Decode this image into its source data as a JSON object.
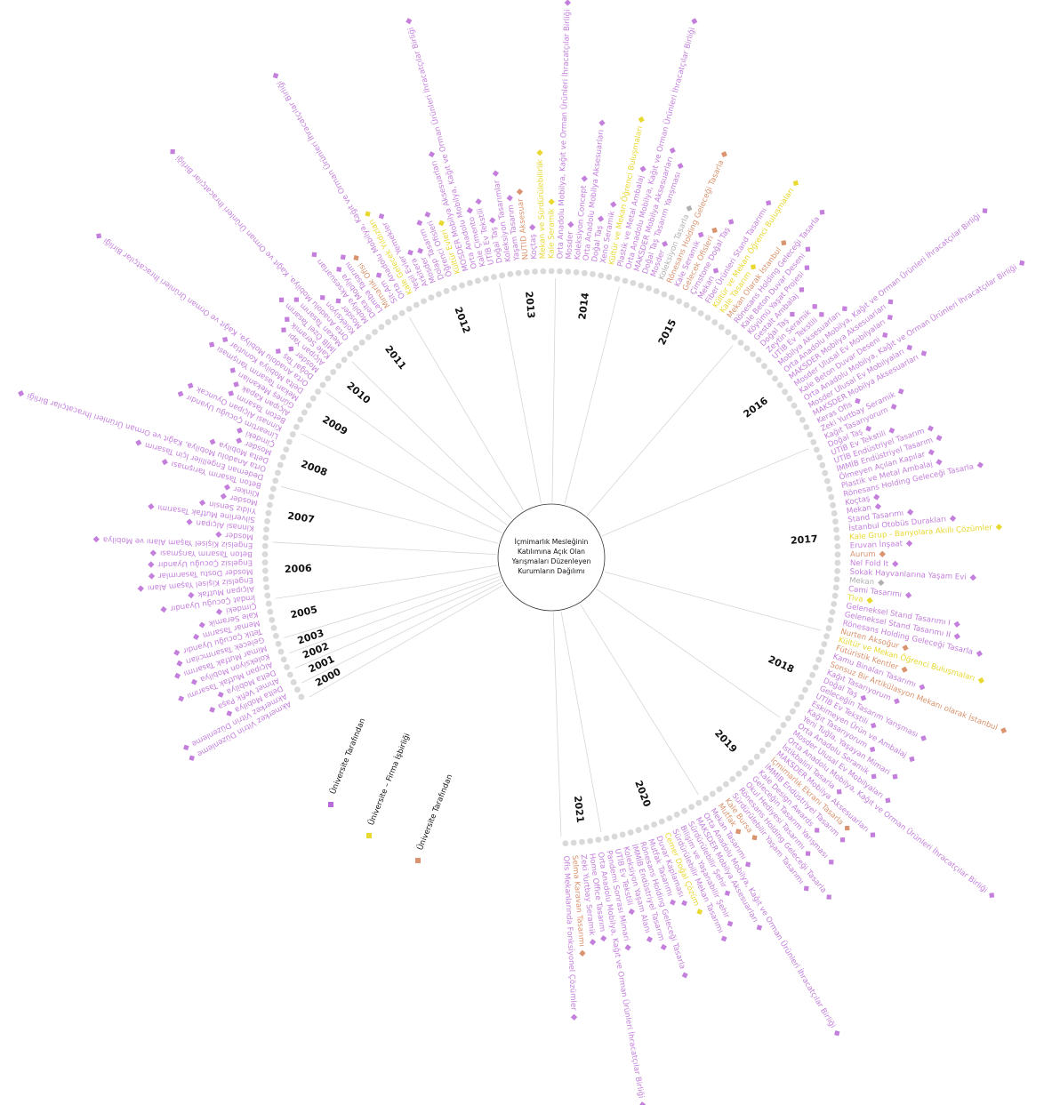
{
  "title_lines": [
    "İçmimarlık Mesleğinin",
    "Katılımına Açık Olan",
    "Yarışmaları Düzenleyen",
    "Kurumların Dağılımı"
  ],
  "legend": [
    {
      "label": "Üniversite Tarafından",
      "color": "#b86ad8"
    },
    {
      "label": "Üniversite – Firma İşbirliği",
      "color": "#e8d830"
    },
    {
      "label": "Üniversite Tarafından",
      "color": "#d9936e"
    }
  ],
  "years": [
    {
      "year": "2000",
      "entries": [
        {
          "label": "Akmerkez Vitrin Düzenleme",
          "color": "#c47fdc"
        },
        {
          "label": "Akmerkez Vitrin Düzenleme",
          "color": "#c47fdc"
        }
      ]
    },
    {
      "year": "2001",
      "entries": [
        {
          "label": "Delta Mobilya",
          "color": "#c47fdc"
        },
        {
          "label": "Ahmet Vefik Paşa",
          "color": "#c47fdc"
        }
      ]
    },
    {
      "year": "2002",
      "entries": [
        {
          "label": "Delta Mobilya",
          "color": "#c47fdc"
        },
        {
          "label": "Alçıpan Mutfak Tasarımı",
          "color": "#c47fdc"
        }
      ]
    },
    {
      "year": "2003",
      "entries": [
        {
          "label": "Koleksiyon Mobilya",
          "color": "#c47fdc"
        },
        {
          "label": "Mimar Mutfak Tasarımı",
          "color": "#c47fdc"
        }
      ]
    },
    {
      "year": "2005",
      "entries": [
        {
          "label": "Gelecek Tasarımcıları",
          "color": "#c47fdc"
        },
        {
          "label": "Tetik Çocuğu Uyandır",
          "color": "#c47fdc"
        },
        {
          "label": "Memar Tasarım",
          "color": "#c47fdc"
        },
        {
          "label": "Kale Seramik",
          "color": "#c47fdc"
        },
        {
          "label": "Çimdeki",
          "color": "#c47fdc"
        }
      ]
    },
    {
      "year": "2006",
      "entries": [
        {
          "label": "İmdat Çocuğu Uyandır",
          "color": "#c47fdc"
        },
        {
          "label": "Alçıpan Mutfak",
          "color": "#c47fdc"
        },
        {
          "label": "Engelsiz Kişisel Yaşam Alanı",
          "color": "#c47fdc"
        },
        {
          "label": "Mosder Dostu Tasarımlar",
          "color": "#c47fdc"
        },
        {
          "label": "Engelsiz Çocuğu Uyandır",
          "color": "#c47fdc"
        },
        {
          "label": "Beton Tasarım Yarışması",
          "color": "#c47fdc"
        },
        {
          "label": "Engelsiz Kişisel Yaşam Alanı ve Mobilya",
          "color": "#c47fdc"
        }
      ]
    },
    {
      "year": "2007",
      "entries": [
        {
          "label": "Mosder",
          "color": "#c47fdc"
        },
        {
          "label": "Kinnasi Alçıpan",
          "color": "#c47fdc"
        },
        {
          "label": "Silverline Mutfak Tasarımı",
          "color": "#c47fdc"
        },
        {
          "label": "Yıldız Sensin",
          "color": "#c47fdc"
        },
        {
          "label": "Mosder",
          "color": "#c47fdc"
        },
        {
          "label": "Klinker",
          "color": "#c47fdc"
        },
        {
          "label": "Beton Tasarım Yarışması",
          "color": "#c47fdc"
        }
      ]
    },
    {
      "year": "2008",
      "entries": [
        {
          "label": "Dedeman Engelliler İçin Tasarım",
          "color": "#c47fdc"
        },
        {
          "label": "Orta Anadolu Mobilya, Kağıt ve Orman Ürünleri İhracatçılar Birliği",
          "color": "#c47fdc"
        },
        {
          "label": "Delta Mobilya",
          "color": "#c47fdc"
        },
        {
          "label": "Mosder",
          "color": "#c47fdc"
        },
        {
          "label": "Çimdeki",
          "color": "#c47fdc"
        },
        {
          "label": "Lineartim Çocuğu Uyandır",
          "color": "#c47fdc"
        },
        {
          "label": "Kinnasi Alçıpan Oyuncak",
          "color": "#c47fdc"
        }
      ]
    },
    {
      "year": "2009",
      "entries": [
        {
          "label": "Beton Tasarım",
          "color": "#c47fdc"
        },
        {
          "label": "Alçıpan Kapak",
          "color": "#c47fdc"
        },
        {
          "label": "Güneş Mekanları",
          "color": "#c47fdc"
        },
        {
          "label": "Mekan Tasarım Yarışması",
          "color": "#c47fdc"
        },
        {
          "label": "Delta Mobilya Konutlar",
          "color": "#c47fdc"
        },
        {
          "label": "Orta Anadolu Mobilya, Kağıt ve Orman Ürünleri İhracatçılar Birliği",
          "color": "#c47fdc"
        }
      ]
    },
    {
      "year": "2010",
      "entries": [
        {
          "label": "Doğal Taş",
          "color": "#c47fdc"
        },
        {
          "label": "Mosder",
          "color": "#c47fdc"
        },
        {
          "label": "Alçıpan Yapı",
          "color": "#c47fdc"
        },
        {
          "label": "Kale Seramik",
          "color": "#c47fdc"
        },
        {
          "label": "İMİB Özel Tasarım",
          "color": "#c47fdc"
        }
      ]
    },
    {
      "year": "2011",
      "entries": [
        {
          "label": "Mekan Tasarım",
          "color": "#c47fdc"
        },
        {
          "label": "Orta Anadolu Mobilya, Kağıt ve Orman Ürünleri İhracatçılar Birliği",
          "color": "#c47fdc"
        },
        {
          "label": "Koleksiyon",
          "color": "#c47fdc"
        },
        {
          "label": "Mosder",
          "color": "#c47fdc"
        },
        {
          "label": "Mobilya Aksesuarları",
          "color": "#c47fdc"
        },
        {
          "label": "Delta Mobilya",
          "color": "#c47fdc"
        },
        {
          "label": "Lamba Tasarımı",
          "color": "#c47fdc"
        },
        {
          "label": "Mimarlık Ofisi",
          "color": "#d9936e"
        },
        {
          "label": "Sit-Am",
          "color": "#c47fdc"
        }
      ]
    },
    {
      "year": "2012",
      "entries": [
        {
          "label": "Orta Anadolu Mobilya, Kağıt ve Orman Ürünleri İhracatçılar Birliği",
          "color": "#c47fdc"
        },
        {
          "label": "Kale Gelecek Yıldızları",
          "color": "#e8d830"
        },
        {
          "label": "Yeşil Evler Yemekler",
          "color": "#c47fdc"
        },
        {
          "label": "Arkitera",
          "color": "#c47fdc"
        },
        {
          "label": "Mosder",
          "color": "#c47fdc"
        },
        {
          "label": "Dolap Tasarım",
          "color": "#c47fdc"
        },
        {
          "label": "Öğrenci Ofisleri",
          "color": "#c47fdc"
        },
        {
          "label": "Kültür Evleri",
          "color": "#e8d830"
        },
        {
          "label": "MOSDER Mobilya Aksesuarları",
          "color": "#c47fdc"
        },
        {
          "label": "Orta Anadolu Mobilya, Kağıt ve Orman Ürünleri İhracatçılar Birliği",
          "color": "#c47fdc"
        },
        {
          "label": "Kale Çimento",
          "color": "#c47fdc"
        },
        {
          "label": "UTİB Ev Tekstili",
          "color": "#c47fdc"
        }
      ]
    },
    {
      "year": "2013",
      "entries": [
        {
          "label": "Doğal Taş",
          "color": "#c47fdc"
        },
        {
          "label": "Koleksiyon Tasarımlar",
          "color": "#c47fdc"
        },
        {
          "label": "Yaşam Tasarım",
          "color": "#c47fdc"
        },
        {
          "label": "NUTID Aksesuar",
          "color": "#d9936e"
        },
        {
          "label": "Koçtaş",
          "color": "#c47fdc"
        },
        {
          "label": "Mekan ve Sürdürülebilirlik",
          "color": "#e8d830"
        },
        {
          "label": "Kale Seramik",
          "color": "#e8d830"
        }
      ]
    },
    {
      "year": "2014",
      "entries": [
        {
          "label": "Orta Anadolu Mobilya, Kağıt ve Orman Ürünleri İhracatçılar Birliği",
          "color": "#c47fdc"
        },
        {
          "label": "Mosder",
          "color": "#c47fdc"
        },
        {
          "label": "Koleksiyon Concept",
          "color": "#c47fdc"
        },
        {
          "label": "Orta Anadolu Mobilya Aksesuarları",
          "color": "#c47fdc"
        },
        {
          "label": "Doğal Taş",
          "color": "#c47fdc"
        },
        {
          "label": "Xeno Seramik",
          "color": "#c47fdc"
        },
        {
          "label": "Kültür ve Mekan Öğrenci Buluşmaları",
          "color": "#e8d830"
        },
        {
          "label": "Plastik ve Metal Ambalaj",
          "color": "#c47fdc"
        }
      ]
    },
    {
      "year": "2015",
      "entries": [
        {
          "label": "Orta Anadolu Mobilya, Kağıt ve Orman Ürünleri İhracatçılar Birliği",
          "color": "#c47fdc"
        },
        {
          "label": "MAKSDER Mobilya Aksesuarları",
          "color": "#c47fdc"
        },
        {
          "label": "Doğal Taş Tasarım Yarışması",
          "color": "#c47fdc"
        },
        {
          "label": "Mosder",
          "color": "#c47fdc"
        },
        {
          "label": "Koleksiyon Tasarla",
          "color": "#b0b0b0"
        },
        {
          "label": "Rönesans Holding Geleceği Tasarla",
          "color": "#d9936e"
        },
        {
          "label": "Kale Seramik",
          "color": "#c47fdc"
        },
        {
          "label": "Gelecek Ofisleri",
          "color": "#d9936e"
        },
        {
          "label": "Çimstone Doğal Taş",
          "color": "#c47fdc"
        },
        {
          "label": "Mekan",
          "color": "#c47fdc"
        },
        {
          "label": "Fiber Ürünleri Stand Tasarımı",
          "color": "#c47fdc"
        },
        {
          "label": "Kültür ve Mekan Öğrenci Buluşmaları",
          "color": "#e8d830"
        },
        {
          "label": "Kale Tasarım",
          "color": "#e8d830"
        },
        {
          "label": "Mekan Olarak İstanbul",
          "color": "#d9936e"
        },
        {
          "label": "Rönesans Holding Geleceği Tasarla",
          "color": "#c47fdc"
        },
        {
          "label": "Kale Beton Duvar Deseni",
          "color": "#c47fdc"
        }
      ]
    },
    {
      "year": "2016",
      "entries": [
        {
          "label": "Köyümü Yaşat Projesi",
          "color": "#c47fdc"
        },
        {
          "label": "Gestalt Ambalaj",
          "color": "#c47fdc"
        },
        {
          "label": "Doğal Taş",
          "color": "#c47fdc"
        },
        {
          "label": "Zeytin Seramik",
          "color": "#c47fdc"
        },
        {
          "label": "UTİB Ev Tekstili",
          "color": "#c47fdc"
        },
        {
          "label": "Mobilya Aksesuarları",
          "color": "#c47fdc"
        },
        {
          "label": "Orta Anadolu Mobilya, Kağıt ve Orman Ürünleri İhracatçılar Birliği",
          "color": "#c47fdc"
        },
        {
          "label": "MAKSDER Mobilya Aksesuarları",
          "color": "#c47fdc"
        },
        {
          "label": "Mosder Ulusal Ev Mobilyaları",
          "color": "#c47fdc"
        },
        {
          "label": "Kale Beton Duvar Deseni",
          "color": "#c47fdc"
        },
        {
          "label": "Orta Anadolu Mobilya, Kağıt ve Orman Ürünleri İhracatçılar Birliği",
          "color": "#c47fdc"
        },
        {
          "label": "Mosder Ulusal Ev Mobilyaları",
          "color": "#c47fdc"
        },
        {
          "label": "MAKSDER Mobilya Aksesuarları",
          "color": "#c47fdc"
        },
        {
          "label": "Keras Ofis",
          "color": "#c47fdc"
        },
        {
          "label": "Zeki Yurtbay Seramik",
          "color": "#c47fdc"
        },
        {
          "label": "Kağıt Tasarıyorum",
          "color": "#c47fdc"
        }
      ]
    },
    {
      "year": "2017",
      "entries": [
        {
          "label": "Doğal Taş",
          "color": "#c47fdc"
        },
        {
          "label": "UTİB Ev Tekstili",
          "color": "#c47fdc"
        },
        {
          "label": "UTİB Endüstriyel Tasarım",
          "color": "#c47fdc"
        },
        {
          "label": "İMMİB Endüstriyel Tasarım",
          "color": "#c47fdc"
        },
        {
          "label": "Ölmeyen Açılan Kapılar",
          "color": "#c47fdc"
        },
        {
          "label": "Plastik ve Metal Ambalaj",
          "color": "#c47fdc"
        },
        {
          "label": "Rönesans Holding Geleceği Tasarla",
          "color": "#c47fdc"
        },
        {
          "label": "Koçtaş",
          "color": "#c47fdc"
        },
        {
          "label": "Mekan",
          "color": "#c47fdc"
        },
        {
          "label": "Stand Tasarımı",
          "color": "#c47fdc"
        },
        {
          "label": "İstanbul Otobüs Durakları",
          "color": "#c47fdc"
        },
        {
          "label": "Kale Grup - Banyolara Akıllı Çözümler",
          "color": "#e8d830"
        },
        {
          "label": "Eruvan İnşaat",
          "color": "#c47fdc"
        },
        {
          "label": "Aurum",
          "color": "#d9936e"
        },
        {
          "label": "Nel Fold It",
          "color": "#c47fdc"
        },
        {
          "label": "Sokak Hayvanlarına Yaşam Evi",
          "color": "#c47fdc"
        },
        {
          "label": "Mekan",
          "color": "#b0b0b0"
        },
        {
          "label": "Cami Tasarımı",
          "color": "#c47fdc"
        },
        {
          "label": "Tiva",
          "color": "#e8d830"
        },
        {
          "label": "Geleneksel Stand Tasarımı I",
          "color": "#c47fdc"
        },
        {
          "label": "Geleneksel Stand Tasarımı II",
          "color": "#c47fdc"
        },
        {
          "label": "Rönesans Holding Geleceği Tasarla",
          "color": "#c47fdc"
        },
        {
          "label": "Nurten Aksoğur",
          "color": "#d9936e"
        }
      ]
    },
    {
      "year": "2018",
      "entries": [
        {
          "label": "Kültür ve Mekan Öğrenci Buluşmaları",
          "color": "#e8d830"
        },
        {
          "label": "Fütüristik Kentler",
          "color": "#d9936e"
        },
        {
          "label": "Kamu Binaları Tasarımı",
          "color": "#c47fdc"
        },
        {
          "label": "Sonsuz Bir Artikülasyon Mekanı olarak İstanbul",
          "color": "#d9936e"
        },
        {
          "label": "Kağıt Tasarıyorum",
          "color": "#c47fdc"
        },
        {
          "label": "Doğal Taş",
          "color": "#c47fdc"
        },
        {
          "label": "Geleceğin Tasarım Yarışması",
          "color": "#c47fdc"
        },
        {
          "label": "UTİB Ev Tekstili",
          "color": "#c47fdc"
        },
        {
          "label": "Eskimeyen Ürün ve Ambalaj",
          "color": "#c47fdc"
        },
        {
          "label": "Kağıt Tasarıyorum",
          "color": "#c47fdc"
        },
        {
          "label": "Yeni Tuğla, Yaşayan Mimari",
          "color": "#c47fdc"
        },
        {
          "label": "Orta Anadolu Seramik",
          "color": "#c47fdc"
        }
      ]
    },
    {
      "year": "2019",
      "entries": [
        {
          "label": "Mosder Ulusal Ev Mobilyaları",
          "color": "#c47fdc"
        },
        {
          "label": "Orta Anadolu Mobilya, Kağıt ve Orman Ürünleri İhracatçılar Birliği",
          "color": "#c47fdc"
        },
        {
          "label": "İstikbalini Tasarla",
          "color": "#c47fdc"
        },
        {
          "label": "MAKSDER Mobilya Aksesuarları",
          "color": "#c47fdc"
        },
        {
          "label": "İçmimarlık Ekranı Tasarla",
          "color": "#d9936e"
        },
        {
          "label": "İMMİB Endüstriyel Tasarım",
          "color": "#c47fdc"
        },
        {
          "label": "Kale Design Awards",
          "color": "#c47fdc"
        },
        {
          "label": "Geleceğin Tasarım Yarışması",
          "color": "#c47fdc"
        },
        {
          "label": "Okul Hediyesi Tasarımı",
          "color": "#c47fdc"
        },
        {
          "label": "Rönesans Holding Geleceği Tasarla",
          "color": "#c47fdc"
        },
        {
          "label": "Sürdürülebilir Yaşam Tasarımı",
          "color": "#c47fdc"
        },
        {
          "label": "Kale Bursa",
          "color": "#d9936e"
        },
        {
          "label": "Mutfak",
          "color": "#d9936e"
        },
        {
          "label": "Mekan Tasarımı",
          "color": "#c47fdc"
        }
      ]
    },
    {
      "year": "2020",
      "entries": [
        {
          "label": "Orta Anadolu Mobilya, Kağıt ve Orman Ürünleri İhracatçılar Birliği",
          "color": "#c47fdc"
        },
        {
          "label": "MAKSDER Mobilya Aksesuarları",
          "color": "#c47fdc"
        },
        {
          "label": "Sürdürülebilir Şehir",
          "color": "#c47fdc"
        },
        {
          "label": "Bilişim ve Yaşanabilir Şehir",
          "color": "#c47fdc"
        },
        {
          "label": "Sürdürülebilir Mekan Tasarımı",
          "color": "#c47fdc"
        },
        {
          "label": "Cemer Doğal Çözüm",
          "color": "#e8d830"
        },
        {
          "label": "Duvar Kaplaması",
          "color": "#c47fdc"
        },
        {
          "label": "Mutfak Tasarımı",
          "color": "#c47fdc"
        },
        {
          "label": "Rönesans Holding Geleceği Tasarla",
          "color": "#c47fdc"
        },
        {
          "label": "İMMİB Endüstriyel Tasarım",
          "color": "#c47fdc"
        },
        {
          "label": "Koleksiyon Yaşam Alanı",
          "color": "#c47fdc"
        },
        {
          "label": "UTİB Ev Tekstili",
          "color": "#c47fdc"
        },
        {
          "label": "Pandemi Sonrası Mimari",
          "color": "#c47fdc"
        }
      ]
    },
    {
      "year": "2021",
      "entries": [
        {
          "label": "Orta Anadolu Mobilya, Kağıt ve Orman Ürünleri İhracatçılar Birliği",
          "color": "#c47fdc"
        },
        {
          "label": "Home Office Tasarım",
          "color": "#c47fdc"
        },
        {
          "label": "Zeki Yurtbay Seramik",
          "color": "#c47fdc"
        },
        {
          "label": "Selma Karavan Tasarımı",
          "color": "#d9936e"
        },
        {
          "label": "Ofis Mekanlarında Fonksiyonel Çözümler",
          "color": "#c47fdc"
        }
      ]
    }
  ]
}
